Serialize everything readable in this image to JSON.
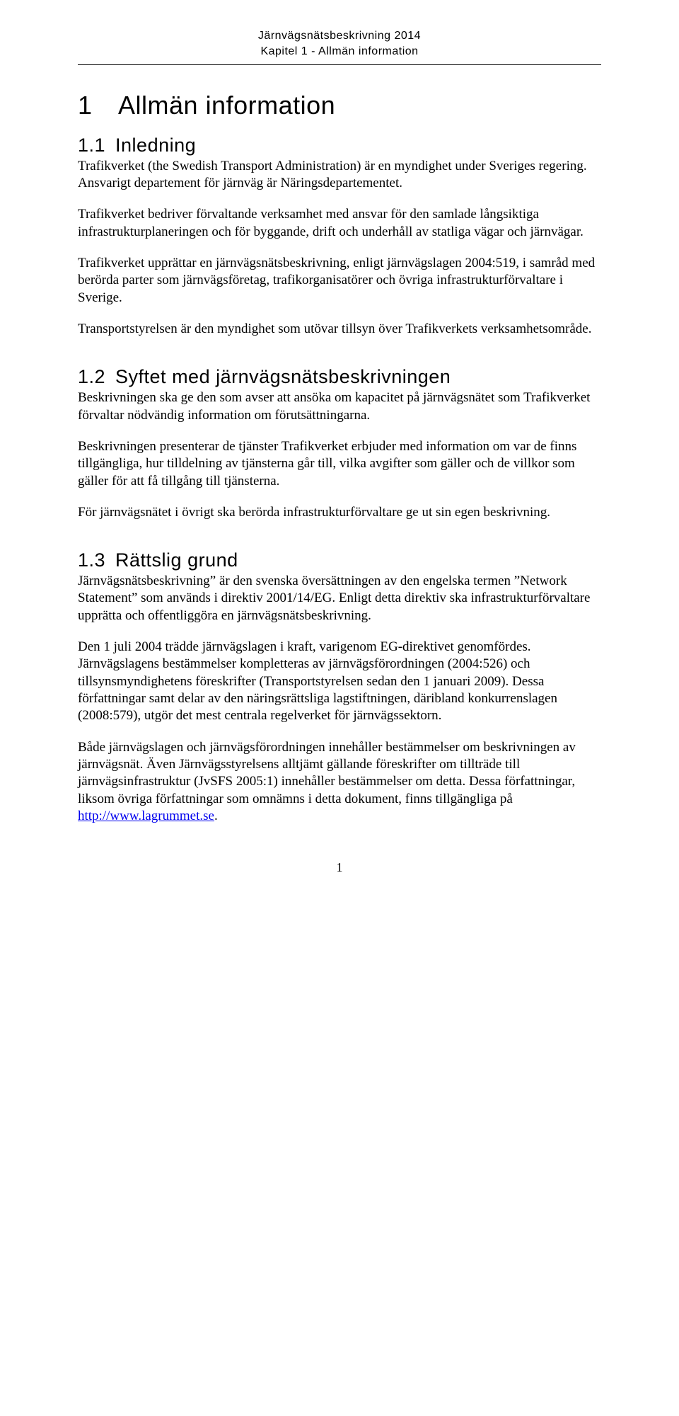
{
  "header": {
    "line1": "Järnvägsnätsbeskrivning 2014",
    "line2": "Kapitel 1 - Allmän information"
  },
  "chapter": {
    "number_title": "1 Allmän information"
  },
  "sections": {
    "s11": {
      "title": "1.1 Inledning",
      "p1": "Trafikverket (the Swedish Transport Administration) är en myndighet under Sveriges regering. Ansvarigt departement för järnväg är Näringsdepartementet.",
      "p2": "Trafikverket bedriver förvaltande verksamhet med ansvar för den samlade långsiktiga infrastrukturplaneringen och för byggande, drift och underhåll av statliga vägar och järnvägar.",
      "p3": "Trafikverket upprättar en järnvägsnätsbeskrivning, enligt järnvägslagen 2004:519, i samråd med berörda parter som järnvägsföretag, trafikorganisatörer och övriga infrastrukturförvaltare i Sverige.",
      "p4": "Transportstyrelsen är den myndighet som utövar tillsyn över Trafikverkets verksamhetsområde."
    },
    "s12": {
      "title": "1.2 Syftet med järnvägsnätsbeskrivningen",
      "p1": "Beskrivningen ska ge den som avser att ansöka om kapacitet på järnvägsnätet som Trafikverket förvaltar nödvändig information om förutsättningarna.",
      "p2": "Beskrivningen presenterar de tjänster Trafikverket erbjuder med information om var de finns tillgängliga, hur tilldelning av tjänsterna går till, vilka avgifter som gäller och de villkor som gäller för att få tillgång till tjänsterna.",
      "p3": "För järnvägsnätet i övrigt ska berörda infrastrukturförvaltare ge ut sin egen beskrivning."
    },
    "s13": {
      "title": "1.3 Rättslig grund",
      "p1": "Järnvägsnätsbeskrivning” är den svenska översättningen av den engelska termen ”Network Statement” som används i direktiv 2001/14/EG. Enligt detta direktiv ska infrastrukturförvaltare upprätta och offentliggöra en järnvägsnätsbeskrivning.",
      "p2": "Den 1 juli 2004 trädde järnvägslagen i kraft, varigenom EG-direktivet genomfördes. Järnvägslagens bestämmelser kompletteras av järnvägsförordningen (2004:526) och tillsynsmyndighetens föreskrifter (Transportstyrelsen sedan den 1 januari 2009). Dessa författningar samt delar av den näringsrättsliga lagstiftningen, däribland konkurrenslagen (2008:579), utgör det mest centrala regelverket för järnvägssektorn.",
      "p3_pre": "Både järnvägslagen och järnvägsförordningen innehåller bestämmelser om beskrivningen av järnvägsnät. Även Järnvägsstyrelsens alltjämt gällande föreskrifter om tillträde till järnvägsinfrastruktur (JvSFS 2005:1) innehåller bestämmelser om detta. Dessa författningar, liksom övriga författningar som omnämns i detta dokument, finns tillgängliga på ",
      "link_text": "http://www.lagrummet.se",
      "link_href": "http://www.lagrummet.se",
      "p3_post": "."
    }
  },
  "page_number": "1",
  "style": {
    "colors": {
      "text": "#000000",
      "background": "#ffffff",
      "link": "#0000ee",
      "rule": "#000000"
    },
    "fonts": {
      "body": "Times New Roman",
      "headings": "Arial"
    },
    "fontsize": {
      "header": 16,
      "h1": 36,
      "h2": 27,
      "body": 19,
      "page_number": 18
    }
  }
}
